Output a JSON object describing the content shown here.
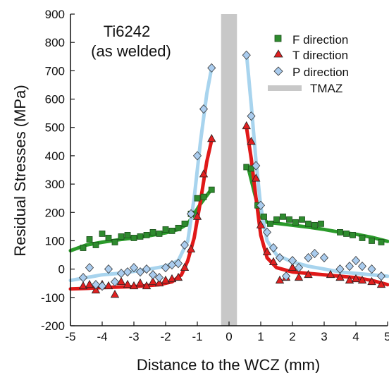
{
  "chart_data": {
    "type": "scatter",
    "title": "",
    "annotation": [
      "Ti6242",
      "(as welded)"
    ],
    "xlabel": "Distance to the WCZ (mm)",
    "ylabel": "Residual Stresses (MPa)",
    "xlim": [
      -5,
      5
    ],
    "ylim": [
      -200,
      900
    ],
    "x_ticks": [
      "-5",
      "-4",
      "-3",
      "-2",
      "-1",
      "0",
      "1",
      "2",
      "3",
      "4",
      "5"
    ],
    "y_ticks": [
      "900",
      "800",
      "700",
      "600",
      "500",
      "400",
      "300",
      "200",
      "100",
      "0",
      "-100",
      "-200"
    ],
    "grid": false,
    "legend_position": "top-right",
    "tmaz": {
      "name": "TMAZ",
      "x_from": -0.25,
      "x_to": 0.25,
      "color": "#c8c8c8"
    },
    "series": [
      {
        "name": "F direction",
        "marker": "square",
        "color": "#2e8b2e",
        "fit_color": "#2a9a2a",
        "points": [
          [
            -4.6,
            75
          ],
          [
            -4.4,
            105
          ],
          [
            -4.2,
            85
          ],
          [
            -4.0,
            125
          ],
          [
            -3.8,
            110
          ],
          [
            -3.6,
            95
          ],
          [
            -3.4,
            115
          ],
          [
            -3.2,
            120
          ],
          [
            -3.0,
            110
          ],
          [
            -2.8,
            115
          ],
          [
            -2.6,
            120
          ],
          [
            -2.4,
            130
          ],
          [
            -2.2,
            125
          ],
          [
            -2.0,
            140
          ],
          [
            -1.8,
            135
          ],
          [
            -1.6,
            145
          ],
          [
            -1.4,
            160
          ],
          [
            -1.2,
            195
          ],
          [
            -1.0,
            250
          ],
          [
            -0.8,
            255
          ],
          [
            -0.55,
            280
          ],
          [
            0.55,
            360
          ],
          [
            0.7,
            355
          ],
          [
            0.9,
            225
          ],
          [
            1.1,
            185
          ],
          [
            1.3,
            160
          ],
          [
            1.5,
            175
          ],
          [
            1.7,
            185
          ],
          [
            1.9,
            175
          ],
          [
            2.1,
            165
          ],
          [
            2.3,
            175
          ],
          [
            2.5,
            160
          ],
          [
            2.7,
            155
          ],
          [
            2.9,
            160
          ],
          [
            3.5,
            130
          ],
          [
            3.7,
            125
          ],
          [
            3.9,
            120
          ],
          [
            4.2,
            110
          ],
          [
            4.5,
            100
          ],
          [
            4.8,
            95
          ]
        ],
        "fit": [
          [
            -5,
            65
          ],
          [
            -4.5,
            85
          ],
          [
            -4,
            95
          ],
          [
            -3.5,
            103
          ],
          [
            -3,
            110
          ],
          [
            -2.5,
            118
          ],
          [
            -2,
            128
          ],
          [
            -1.6,
            140
          ],
          [
            -1.3,
            160
          ],
          [
            -1.1,
            195
          ],
          [
            -0.9,
            230
          ],
          [
            -0.6,
            275
          ],
          [
            0.6,
            360
          ],
          [
            0.8,
            270
          ],
          [
            1.0,
            185
          ],
          [
            1.2,
            165
          ],
          [
            1.6,
            160
          ],
          [
            2,
            155
          ],
          [
            2.5,
            148
          ],
          [
            3,
            140
          ],
          [
            3.5,
            130
          ],
          [
            4,
            123
          ],
          [
            4.5,
            112
          ],
          [
            5,
            98
          ]
        ]
      },
      {
        "name": "T direction",
        "marker": "triangle",
        "color": "#e02020",
        "fit_color": "#e01818",
        "points": [
          [
            -4.6,
            -60
          ],
          [
            -4.4,
            -55
          ],
          [
            -4.2,
            -75
          ],
          [
            -4.0,
            -55
          ],
          [
            -3.8,
            -60
          ],
          [
            -3.6,
            -90
          ],
          [
            -3.4,
            -45
          ],
          [
            -3.2,
            -55
          ],
          [
            -3.0,
            -60
          ],
          [
            -2.8,
            -50
          ],
          [
            -2.6,
            -60
          ],
          [
            -2.4,
            -45
          ],
          [
            -2.2,
            -50
          ],
          [
            -2.0,
            -40
          ],
          [
            -1.8,
            -35
          ],
          [
            -1.6,
            -30
          ],
          [
            -1.4,
            5
          ],
          [
            -1.2,
            70
          ],
          [
            -1.0,
            185
          ],
          [
            -0.8,
            335
          ],
          [
            -0.55,
            460
          ],
          [
            0.55,
            505
          ],
          [
            0.7,
            450
          ],
          [
            0.85,
            320
          ],
          [
            1.0,
            155
          ],
          [
            1.2,
            60
          ],
          [
            1.4,
            25
          ],
          [
            1.6,
            -40
          ],
          [
            1.8,
            -30
          ],
          [
            2.0,
            5
          ],
          [
            2.2,
            -30
          ],
          [
            2.5,
            -20
          ],
          [
            3.2,
            -20
          ],
          [
            3.5,
            -30
          ],
          [
            3.8,
            -40
          ],
          [
            4.0,
            -35
          ],
          [
            4.2,
            -40
          ],
          [
            4.5,
            -45
          ],
          [
            4.8,
            -55
          ]
        ],
        "fit": [
          [
            -5,
            -70
          ],
          [
            -4.5,
            -68
          ],
          [
            -4,
            -65
          ],
          [
            -3,
            -62
          ],
          [
            -2.2,
            -55
          ],
          [
            -1.8,
            -45
          ],
          [
            -1.5,
            -20
          ],
          [
            -1.3,
            30
          ],
          [
            -1.1,
            110
          ],
          [
            -0.9,
            240
          ],
          [
            -0.7,
            380
          ],
          [
            -0.55,
            455
          ],
          [
            0.55,
            500
          ],
          [
            0.7,
            390
          ],
          [
            0.85,
            250
          ],
          [
            1.0,
            120
          ],
          [
            1.2,
            40
          ],
          [
            1.5,
            5
          ],
          [
            2,
            -10
          ],
          [
            2.5,
            -15
          ],
          [
            3,
            -20
          ],
          [
            3.5,
            -25
          ],
          [
            4,
            -30
          ],
          [
            4.5,
            -40
          ],
          [
            5,
            -55
          ]
        ]
      },
      {
        "name": "P direction",
        "marker": "diamond",
        "color": "#aaccee",
        "fit_color": "#a8d4ee",
        "points": [
          [
            -4.6,
            -30
          ],
          [
            -4.4,
            5
          ],
          [
            -4.2,
            -55
          ],
          [
            -4.0,
            -60
          ],
          [
            -3.8,
            0
          ],
          [
            -3.6,
            -45
          ],
          [
            -3.4,
            -15
          ],
          [
            -3.2,
            -10
          ],
          [
            -3.0,
            5
          ],
          [
            -2.8,
            -10
          ],
          [
            -2.6,
            0
          ],
          [
            -2.4,
            -20
          ],
          [
            -2.2,
            -30
          ],
          [
            -2.0,
            5
          ],
          [
            -1.8,
            15
          ],
          [
            -1.6,
            20
          ],
          [
            -1.4,
            85
          ],
          [
            -1.2,
            195
          ],
          [
            -1.0,
            400
          ],
          [
            -0.8,
            565
          ],
          [
            -0.55,
            710
          ],
          [
            0.55,
            755
          ],
          [
            0.7,
            540
          ],
          [
            0.85,
            365
          ],
          [
            1.0,
            225
          ],
          [
            1.2,
            130
          ],
          [
            1.4,
            75
          ],
          [
            1.6,
            40
          ],
          [
            1.8,
            -25
          ],
          [
            2.0,
            30
          ],
          [
            2.2,
            5
          ],
          [
            2.5,
            40
          ],
          [
            2.7,
            55
          ],
          [
            3.0,
            40
          ],
          [
            3.5,
            0
          ],
          [
            3.8,
            10
          ],
          [
            4.0,
            30
          ],
          [
            4.2,
            10
          ],
          [
            4.5,
            0
          ],
          [
            4.8,
            -25
          ]
        ],
        "fit": [
          [
            -5,
            -40
          ],
          [
            -4.5,
            -30
          ],
          [
            -4,
            -20
          ],
          [
            -3.5,
            -15
          ],
          [
            -3,
            -8
          ],
          [
            -2.5,
            0
          ],
          [
            -2,
            10
          ],
          [
            -1.6,
            30
          ],
          [
            -1.3,
            100
          ],
          [
            -1.1,
            250
          ],
          [
            -0.9,
            450
          ],
          [
            -0.7,
            620
          ],
          [
            -0.55,
            710
          ],
          [
            0.55,
            760
          ],
          [
            0.7,
            580
          ],
          [
            0.85,
            380
          ],
          [
            1.0,
            220
          ],
          [
            1.2,
            100
          ],
          [
            1.5,
            50
          ],
          [
            2,
            25
          ],
          [
            2.5,
            10
          ],
          [
            3,
            0
          ],
          [
            3.5,
            -10
          ],
          [
            4,
            -15
          ],
          [
            4.5,
            -20
          ],
          [
            5,
            -25
          ]
        ]
      }
    ]
  }
}
